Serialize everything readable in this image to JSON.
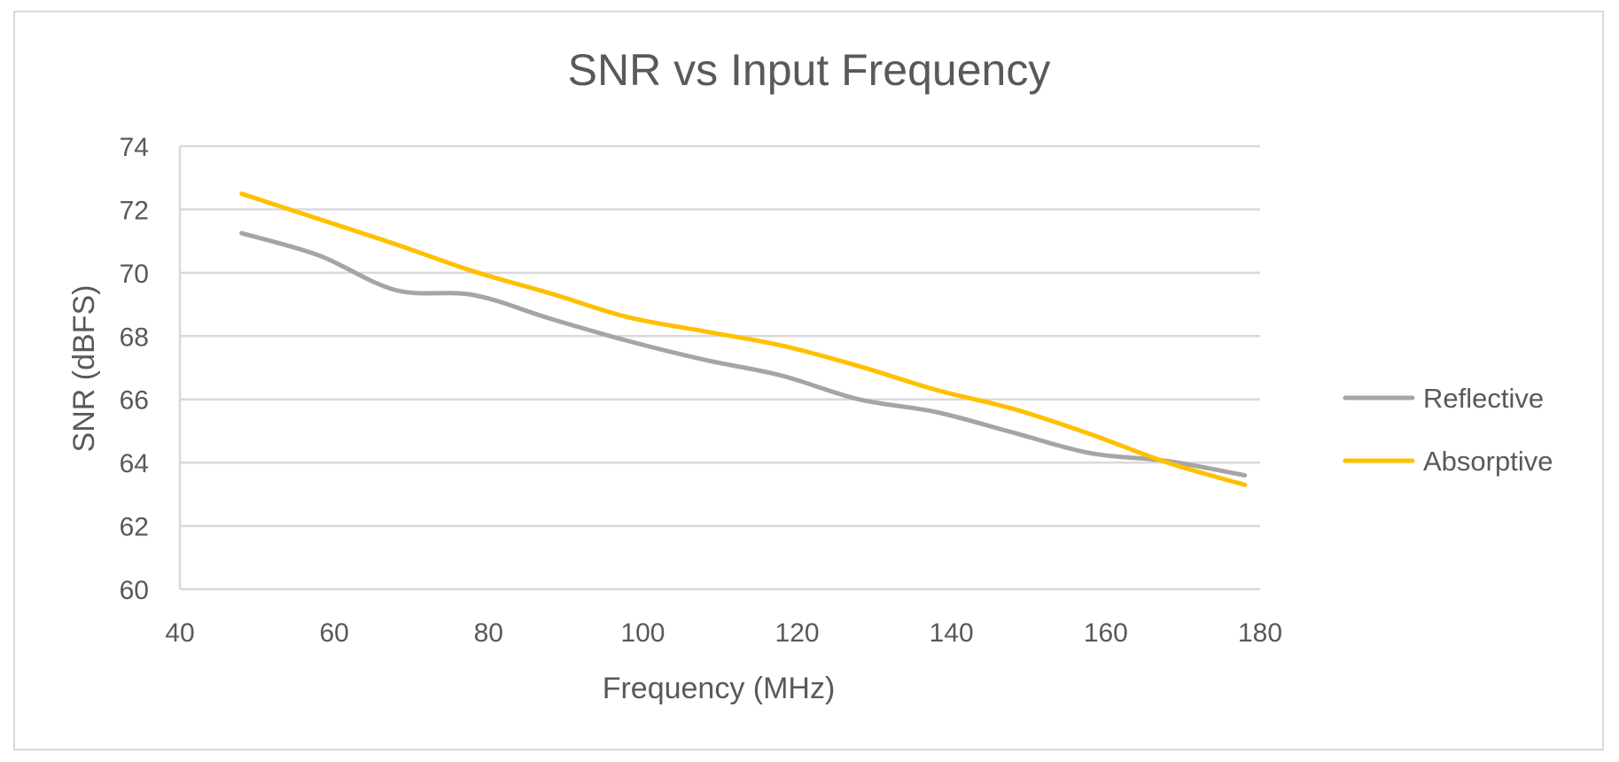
{
  "chart_data": {
    "type": "line",
    "title": "SNR vs Input Frequency",
    "xlabel": "Frequency (MHz)",
    "ylabel": "SNR (dBFS)",
    "xlim": [
      40,
      180
    ],
    "ylim": [
      60,
      74
    ],
    "xticks": [
      40,
      60,
      80,
      100,
      120,
      140,
      160,
      180
    ],
    "yticks": [
      60,
      62,
      64,
      66,
      68,
      70,
      72,
      74
    ],
    "grid": "horizontal",
    "legend_position": "right",
    "series": [
      {
        "name": "Reflective",
        "color": "#a5a5a5",
        "x": [
          48,
          58,
          68,
          78,
          88,
          98,
          108,
          118,
          128,
          138,
          148,
          158,
          168,
          178
        ],
        "y": [
          71.25,
          70.55,
          69.45,
          69.3,
          68.55,
          67.85,
          67.25,
          66.75,
          66.0,
          65.6,
          64.95,
          64.3,
          64.05,
          63.6
        ]
      },
      {
        "name": "Absorptive",
        "color": "#ffc000",
        "x": [
          48,
          58,
          68,
          78,
          88,
          98,
          108,
          118,
          128,
          138,
          148,
          158,
          168,
          178
        ],
        "y": [
          72.5,
          71.7,
          70.9,
          70.05,
          69.35,
          68.6,
          68.15,
          67.7,
          67.05,
          66.3,
          65.7,
          64.9,
          64.0,
          63.3
        ]
      }
    ]
  }
}
